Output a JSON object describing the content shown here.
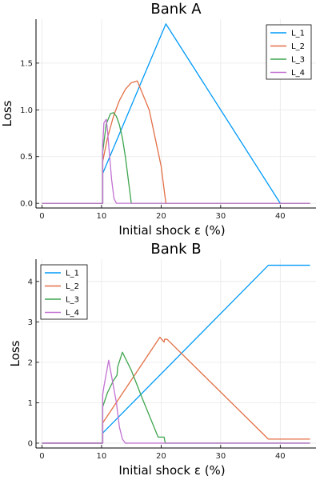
{
  "chart_data": [
    {
      "type": "line",
      "title": "Bank A",
      "xlabel": "Initial shock ε (%)",
      "ylabel": "Loss",
      "xlim": [
        -1,
        46
      ],
      "ylim": [
        -0.05,
        1.97
      ],
      "xticks": [
        0,
        10,
        20,
        30,
        40
      ],
      "yticks": [
        0.0,
        0.5,
        1.0,
        1.5
      ],
      "ytick_labels": [
        "0.0",
        "0.5",
        "1.0",
        "1.5"
      ],
      "grid": true,
      "legend_position": "top-right",
      "series": [
        {
          "name": "L_1",
          "color": "#009af9",
          "x": [
            0,
            10.2,
            10.2,
            20.8,
            40,
            45
          ],
          "y": [
            0,
            0,
            0.32,
            1.92,
            0,
            0
          ]
        },
        {
          "name": "L_2",
          "color": "#e26f46",
          "x": [
            0,
            10.2,
            10.2,
            11,
            12,
            13,
            14,
            15,
            16,
            18,
            20,
            20.8,
            45
          ],
          "y": [
            0,
            0,
            0.45,
            0.7,
            0.93,
            1.1,
            1.22,
            1.29,
            1.31,
            1.0,
            0.4,
            0,
            0
          ]
        },
        {
          "name": "L_3",
          "color": "#3ea44e",
          "x": [
            0,
            10.2,
            10.2,
            10.8,
            11.5,
            12,
            12.5,
            13,
            13.5,
            14,
            15,
            45
          ],
          "y": [
            0,
            0,
            0.55,
            0.85,
            0.96,
            0.97,
            0.93,
            0.84,
            0.7,
            0.5,
            0,
            0
          ]
        },
        {
          "name": "L_4",
          "color": "#c271d2",
          "x": [
            0,
            10.2,
            10.2,
            10.4,
            10.6,
            10.8,
            11,
            11.3,
            11.7,
            12.1,
            12.5,
            45
          ],
          "y": [
            0,
            0,
            0.62,
            0.86,
            0.88,
            0.9,
            0.78,
            0.55,
            0.25,
            0.05,
            0,
            0
          ]
        }
      ]
    },
    {
      "type": "line",
      "title": "Bank B",
      "xlabel": "Initial shock ε (%)",
      "ylabel": "Loss",
      "xlim": [
        -1,
        46
      ],
      "ylim": [
        -0.12,
        4.55
      ],
      "xticks": [
        0,
        10,
        20,
        30,
        40
      ],
      "yticks": [
        0,
        1,
        2,
        3,
        4
      ],
      "ytick_labels": [
        "0",
        "1",
        "2",
        "3",
        "4"
      ],
      "grid": true,
      "legend_position": "top-left",
      "series": [
        {
          "name": "L_1",
          "color": "#009af9",
          "x": [
            0,
            10.2,
            10.2,
            38,
            45
          ],
          "y": [
            0,
            0,
            0.25,
            4.4,
            4.4
          ]
        },
        {
          "name": "L_2",
          "color": "#e26f46",
          "x": [
            0,
            10.2,
            10.2,
            19.8,
            20.5,
            20.6,
            21,
            38,
            45
          ],
          "y": [
            0,
            0,
            0.5,
            2.62,
            2.5,
            2.57,
            2.57,
            0.1,
            0.1
          ]
        },
        {
          "name": "L_3",
          "color": "#3ea44e",
          "x": [
            0,
            10.2,
            10.2,
            11,
            12,
            12.6,
            12.7,
            13.5,
            15,
            17,
            19.5,
            20.5,
            20.7,
            45
          ],
          "y": [
            0,
            0,
            0.9,
            1.25,
            1.55,
            1.68,
            1.88,
            2.25,
            1.8,
            1.05,
            0.15,
            0.15,
            0,
            0
          ]
        },
        {
          "name": "L_4",
          "color": "#c271d2",
          "x": [
            0,
            10.2,
            10.2,
            10.4,
            11.2,
            12.5,
            13,
            13.5,
            14,
            45
          ],
          "y": [
            0,
            0,
            1.2,
            1.4,
            2.05,
            1.0,
            0.4,
            0.1,
            0,
            0
          ]
        }
      ]
    }
  ]
}
